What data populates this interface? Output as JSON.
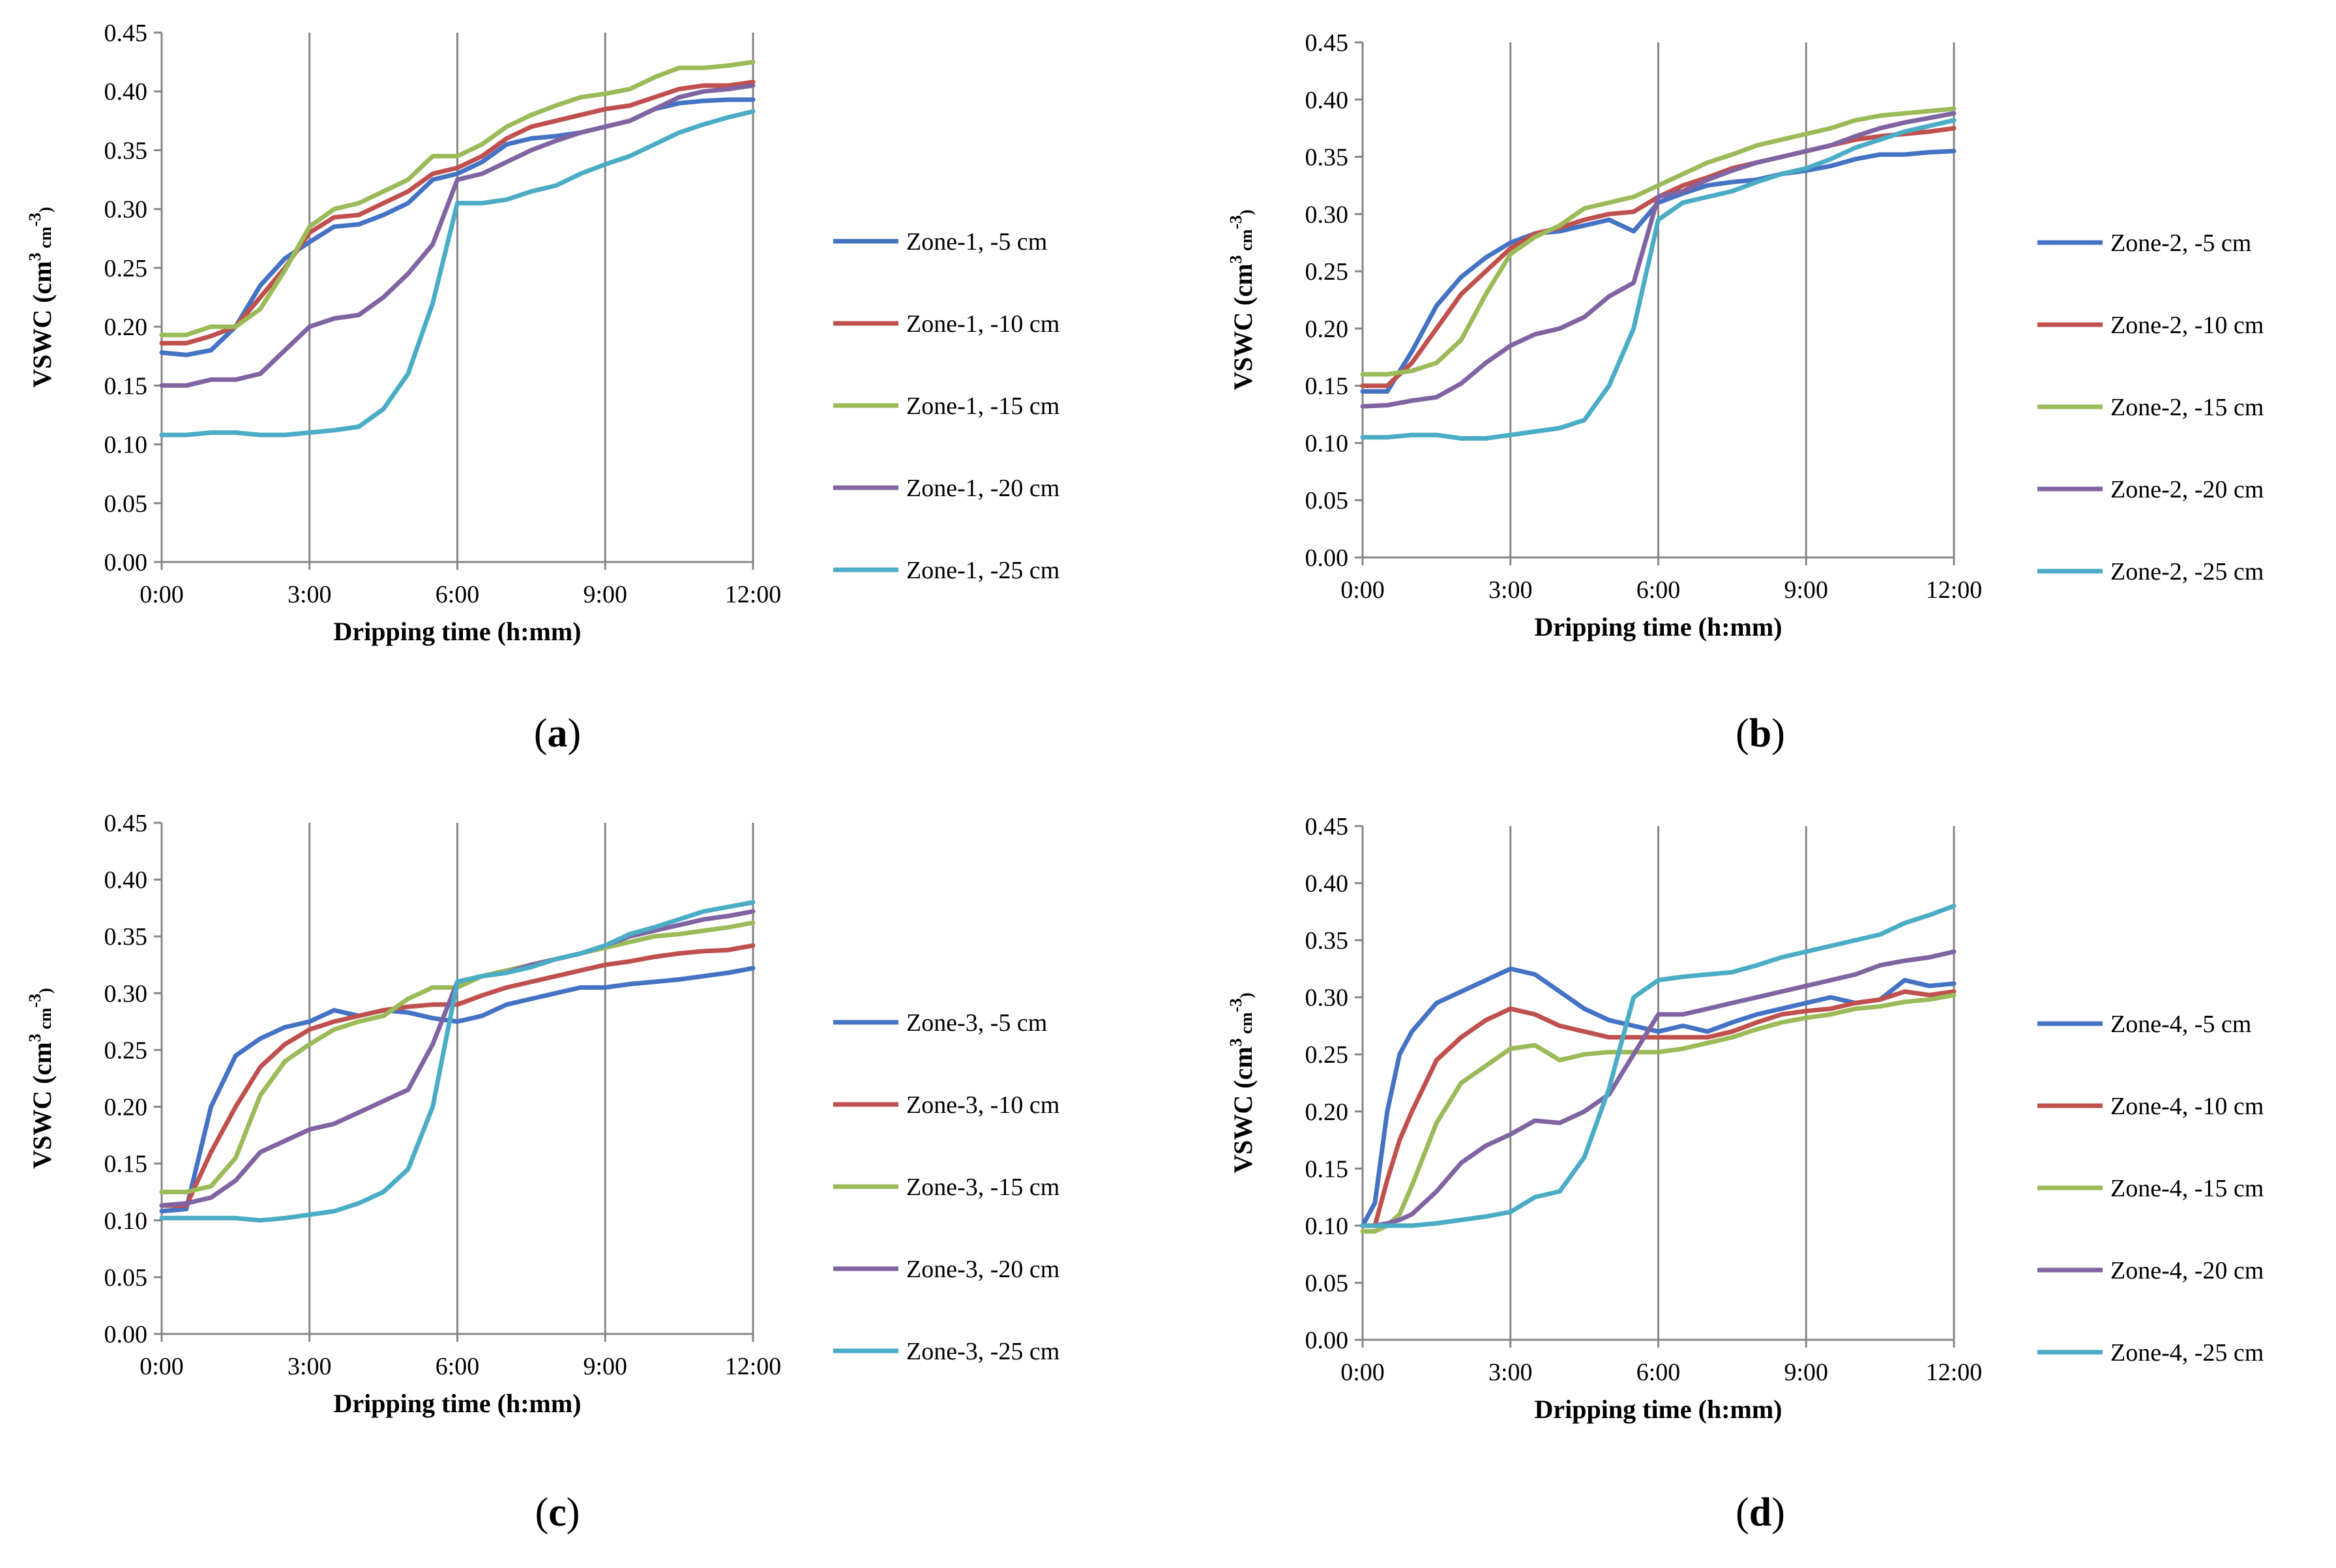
{
  "chart_data": [
    {
      "type": "line",
      "panel_label": "a",
      "xlabel": "Dripping time (h:mm)",
      "ylabel": "VSWC (cm³ cm⁻³)",
      "ylabel_parts": {
        "base": "VSWC (cm",
        "sup1": "3",
        "mid": " cm",
        "sup2": "-3",
        "end": ")"
      },
      "xlim": [
        0,
        12
      ],
      "ylim": [
        0,
        0.45
      ],
      "x_ticks": [
        0,
        3,
        6,
        9,
        12
      ],
      "x_tick_labels": [
        "0:00",
        "3:00",
        "6:00",
        "9:00",
        "12:00"
      ],
      "y_ticks": [
        0,
        0.05,
        0.1,
        0.15,
        0.2,
        0.25,
        0.3,
        0.35,
        0.4,
        0.45
      ],
      "y_tick_labels": [
        "0.00",
        "0.05",
        "0.10",
        "0.15",
        "0.20",
        "0.25",
        "0.30",
        "0.35",
        "0.40",
        "0.45"
      ],
      "grid": "vertical",
      "legend": "right",
      "x": [
        0,
        0.5,
        1,
        1.5,
        2,
        2.5,
        3,
        3.5,
        4,
        4.5,
        5,
        5.5,
        6,
        6.5,
        7,
        7.5,
        8,
        8.5,
        9,
        9.5,
        10,
        10.5,
        11,
        11.5,
        12
      ],
      "series": [
        {
          "name": "Zone-1, -5 cm",
          "color": "#4472C4",
          "values": [
            0.178,
            0.176,
            0.18,
            0.2,
            0.235,
            0.258,
            0.272,
            0.285,
            0.287,
            0.295,
            0.305,
            0.325,
            0.33,
            0.34,
            0.355,
            0.36,
            0.362,
            0.365,
            0.37,
            0.375,
            0.385,
            0.39,
            0.392,
            0.393,
            0.393
          ]
        },
        {
          "name": "Zone-1, -10 cm",
          "color": "#C0504D",
          "values": [
            0.186,
            0.186,
            0.192,
            0.2,
            0.225,
            0.25,
            0.28,
            0.293,
            0.295,
            0.305,
            0.315,
            0.33,
            0.335,
            0.345,
            0.36,
            0.37,
            0.375,
            0.38,
            0.385,
            0.388,
            0.395,
            0.402,
            0.405,
            0.405,
            0.408
          ]
        },
        {
          "name": "Zone-1, -15 cm",
          "color": "#9BBB59",
          "values": [
            0.193,
            0.193,
            0.2,
            0.2,
            0.215,
            0.248,
            0.285,
            0.3,
            0.305,
            0.315,
            0.325,
            0.345,
            0.345,
            0.355,
            0.37,
            0.38,
            0.388,
            0.395,
            0.398,
            0.402,
            0.412,
            0.42,
            0.42,
            0.422,
            0.425
          ]
        },
        {
          "name": "Zone-1, -20 cm",
          "color": "#8064A2",
          "values": [
            0.15,
            0.15,
            0.155,
            0.155,
            0.16,
            0.18,
            0.2,
            0.207,
            0.21,
            0.225,
            0.245,
            0.27,
            0.325,
            0.33,
            0.34,
            0.35,
            0.358,
            0.365,
            0.37,
            0.375,
            0.385,
            0.395,
            0.4,
            0.402,
            0.405
          ]
        },
        {
          "name": "Zone-1, -25 cm",
          "color": "#4BACC6",
          "values": [
            0.108,
            0.108,
            0.11,
            0.11,
            0.108,
            0.108,
            0.11,
            0.112,
            0.115,
            0.13,
            0.16,
            0.22,
            0.305,
            0.305,
            0.308,
            0.315,
            0.32,
            0.33,
            0.338,
            0.345,
            0.355,
            0.365,
            0.372,
            0.378,
            0.383
          ]
        }
      ]
    },
    {
      "type": "line",
      "panel_label": "b",
      "xlabel": "Dripping time (h:mm)",
      "ylabel": "VSWC (cm³ cm⁻³)",
      "ylabel_parts": {
        "base": "VSWC (cm",
        "sup1": "3",
        "mid": " cm",
        "sup2": "-3",
        "end": ")"
      },
      "xlim": [
        0,
        12
      ],
      "ylim": [
        0,
        0.45
      ],
      "x_ticks": [
        0,
        3,
        6,
        9,
        12
      ],
      "x_tick_labels": [
        "0:00",
        "3:00",
        "6:00",
        "9:00",
        "12:00"
      ],
      "y_ticks": [
        0,
        0.05,
        0.1,
        0.15,
        0.2,
        0.25,
        0.3,
        0.35,
        0.4,
        0.45
      ],
      "y_tick_labels": [
        "0.00",
        "0.05",
        "0.10",
        "0.15",
        "0.20",
        "0.25",
        "0.30",
        "0.35",
        "0.40",
        "0.45"
      ],
      "grid": "vertical",
      "legend": "right",
      "x": [
        0,
        0.5,
        1,
        1.5,
        2,
        2.5,
        3,
        3.5,
        4,
        4.5,
        5,
        5.5,
        6,
        6.5,
        7,
        7.5,
        8,
        8.5,
        9,
        9.5,
        10,
        10.5,
        11,
        11.5,
        12
      ],
      "series": [
        {
          "name": "Zone-2, -5 cm",
          "color": "#4472C4",
          "values": [
            0.145,
            0.145,
            0.18,
            0.22,
            0.245,
            0.262,
            0.275,
            0.283,
            0.285,
            0.29,
            0.295,
            0.285,
            0.31,
            0.318,
            0.325,
            0.328,
            0.33,
            0.335,
            0.338,
            0.342,
            0.348,
            0.352,
            0.352,
            0.354,
            0.355
          ]
        },
        {
          "name": "Zone-2, -10 cm",
          "color": "#C0504D",
          "values": [
            0.15,
            0.15,
            0.17,
            0.2,
            0.23,
            0.25,
            0.27,
            0.283,
            0.288,
            0.295,
            0.3,
            0.302,
            0.315,
            0.325,
            0.332,
            0.34,
            0.345,
            0.35,
            0.355,
            0.36,
            0.365,
            0.368,
            0.37,
            0.372,
            0.375
          ]
        },
        {
          "name": "Zone-2, -15 cm",
          "color": "#9BBB59",
          "values": [
            0.16,
            0.16,
            0.163,
            0.17,
            0.19,
            0.23,
            0.265,
            0.28,
            0.29,
            0.305,
            0.31,
            0.315,
            0.325,
            0.335,
            0.345,
            0.352,
            0.36,
            0.365,
            0.37,
            0.375,
            0.382,
            0.386,
            0.388,
            0.39,
            0.392
          ]
        },
        {
          "name": "Zone-2, -20 cm",
          "color": "#8064A2",
          "values": [
            0.132,
            0.133,
            0.137,
            0.14,
            0.152,
            0.17,
            0.185,
            0.195,
            0.2,
            0.21,
            0.228,
            0.24,
            0.315,
            0.32,
            0.33,
            0.338,
            0.345,
            0.35,
            0.355,
            0.36,
            0.368,
            0.375,
            0.38,
            0.384,
            0.388
          ]
        },
        {
          "name": "Zone-2, -25 cm",
          "color": "#4BACC6",
          "values": [
            0.105,
            0.105,
            0.107,
            0.107,
            0.104,
            0.104,
            0.107,
            0.11,
            0.113,
            0.12,
            0.15,
            0.2,
            0.295,
            0.31,
            0.315,
            0.32,
            0.328,
            0.335,
            0.34,
            0.348,
            0.358,
            0.365,
            0.372,
            0.377,
            0.382
          ]
        }
      ]
    },
    {
      "type": "line",
      "panel_label": "c",
      "xlabel": "Dripping time (h:mm)",
      "ylabel": "VSWC (cm³ cm⁻³)",
      "ylabel_parts": {
        "base": "VSWC (cm",
        "sup1": "3",
        "mid": " cm",
        "sup2": "-3",
        "end": ")"
      },
      "xlim": [
        0,
        12
      ],
      "ylim": [
        0,
        0.45
      ],
      "x_ticks": [
        0,
        3,
        6,
        9,
        12
      ],
      "x_tick_labels": [
        "0:00",
        "3:00",
        "6:00",
        "9:00",
        "12:00"
      ],
      "y_ticks": [
        0,
        0.05,
        0.1,
        0.15,
        0.2,
        0.25,
        0.3,
        0.35,
        0.4,
        0.45
      ],
      "y_tick_labels": [
        "0.00",
        "0.05",
        "0.10",
        "0.15",
        "0.20",
        "0.25",
        "0.30",
        "0.35",
        "0.40",
        "0.45"
      ],
      "grid": "vertical",
      "legend": "right",
      "x": [
        0,
        0.5,
        1,
        1.5,
        2,
        2.5,
        3,
        3.5,
        4,
        4.5,
        5,
        5.5,
        6,
        6.5,
        7,
        7.5,
        8,
        8.5,
        9,
        9.5,
        10,
        10.5,
        11,
        11.5,
        12
      ],
      "series": [
        {
          "name": "Zone-3, -5 cm",
          "color": "#4472C4",
          "values": [
            0.108,
            0.11,
            0.2,
            0.245,
            0.26,
            0.27,
            0.275,
            0.285,
            0.28,
            0.285,
            0.283,
            0.278,
            0.275,
            0.28,
            0.29,
            0.295,
            0.3,
            0.305,
            0.305,
            0.308,
            0.31,
            0.312,
            0.315,
            0.318,
            0.322
          ]
        },
        {
          "name": "Zone-3, -10 cm",
          "color": "#C0504D",
          "values": [
            0.113,
            0.113,
            0.16,
            0.2,
            0.235,
            0.255,
            0.268,
            0.275,
            0.28,
            0.285,
            0.288,
            0.29,
            0.29,
            0.298,
            0.305,
            0.31,
            0.315,
            0.32,
            0.325,
            0.328,
            0.332,
            0.335,
            0.337,
            0.338,
            0.342
          ]
        },
        {
          "name": "Zone-3, -15 cm",
          "color": "#9BBB59",
          "values": [
            0.125,
            0.125,
            0.13,
            0.155,
            0.21,
            0.24,
            0.255,
            0.268,
            0.275,
            0.28,
            0.295,
            0.305,
            0.305,
            0.315,
            0.32,
            0.325,
            0.33,
            0.335,
            0.34,
            0.345,
            0.35,
            0.352,
            0.355,
            0.358,
            0.362
          ]
        },
        {
          "name": "Zone-3, -20 cm",
          "color": "#8064A2",
          "values": [
            0.113,
            0.115,
            0.12,
            0.135,
            0.16,
            0.17,
            0.18,
            0.185,
            0.195,
            0.205,
            0.215,
            0.255,
            0.31,
            0.315,
            0.318,
            0.325,
            0.33,
            0.335,
            0.342,
            0.35,
            0.355,
            0.36,
            0.365,
            0.368,
            0.372
          ]
        },
        {
          "name": "Zone-3, -25 cm",
          "color": "#4BACC6",
          "values": [
            0.102,
            0.102,
            0.102,
            0.102,
            0.1,
            0.102,
            0.105,
            0.108,
            0.115,
            0.125,
            0.145,
            0.2,
            0.31,
            0.315,
            0.318,
            0.323,
            0.33,
            0.335,
            0.342,
            0.352,
            0.358,
            0.365,
            0.372,
            0.376,
            0.38
          ]
        }
      ]
    },
    {
      "type": "line",
      "panel_label": "d",
      "xlabel": "Dripping time (h:mm)",
      "ylabel": "VSWC (cm³ cm⁻³)",
      "ylabel_parts": {
        "base": "VSWC (cm",
        "sup1": "3",
        "mid": " cm",
        "sup2": "-3",
        "end": ")"
      },
      "xlim": [
        0,
        12
      ],
      "ylim": [
        0,
        0.45
      ],
      "x_ticks": [
        0,
        3,
        6,
        9,
        12
      ],
      "x_tick_labels": [
        "0:00",
        "3:00",
        "6:00",
        "9:00",
        "12:00"
      ],
      "y_ticks": [
        0,
        0.05,
        0.1,
        0.15,
        0.2,
        0.25,
        0.3,
        0.35,
        0.4,
        0.45
      ],
      "y_tick_labels": [
        "0.00",
        "0.05",
        "0.10",
        "0.15",
        "0.20",
        "0.25",
        "0.30",
        "0.35",
        "0.40",
        "0.45"
      ],
      "grid": "vertical",
      "legend": "right",
      "x": [
        0,
        0.25,
        0.5,
        0.75,
        1,
        1.5,
        2,
        2.5,
        3,
        3.5,
        4,
        4.5,
        5,
        5.5,
        6,
        6.5,
        7,
        7.5,
        8,
        8.5,
        9,
        9.5,
        10,
        10.5,
        11,
        11.5,
        12
      ],
      "series": [
        {
          "name": "Zone-4, -5 cm",
          "color": "#4472C4",
          "values": [
            0.1,
            0.12,
            0.2,
            0.25,
            0.27,
            0.295,
            0.305,
            0.315,
            0.325,
            0.32,
            0.305,
            0.29,
            0.28,
            0.275,
            0.27,
            0.275,
            0.27,
            0.278,
            0.285,
            0.29,
            0.295,
            0.3,
            0.295,
            0.298,
            0.315,
            0.31,
            0.312
          ]
        },
        {
          "name": "Zone-4, -10 cm",
          "color": "#C0504D",
          "values": [
            0.1,
            0.1,
            0.14,
            0.175,
            0.2,
            0.245,
            0.265,
            0.28,
            0.29,
            0.285,
            0.275,
            0.27,
            0.265,
            0.265,
            0.265,
            0.265,
            0.265,
            0.27,
            0.278,
            0.285,
            0.288,
            0.29,
            0.295,
            0.298,
            0.305,
            0.302,
            0.305
          ]
        },
        {
          "name": "Zone-4, -15 cm",
          "color": "#9BBB59",
          "values": [
            0.095,
            0.095,
            0.1,
            0.11,
            0.135,
            0.19,
            0.225,
            0.24,
            0.255,
            0.258,
            0.245,
            0.25,
            0.252,
            0.252,
            0.252,
            0.255,
            0.26,
            0.265,
            0.272,
            0.278,
            0.282,
            0.285,
            0.29,
            0.292,
            0.296,
            0.298,
            0.302
          ]
        },
        {
          "name": "Zone-4, -20 cm",
          "color": "#8064A2",
          "values": [
            0.1,
            0.1,
            0.102,
            0.105,
            0.11,
            0.13,
            0.155,
            0.17,
            0.18,
            0.192,
            0.19,
            0.2,
            0.215,
            0.25,
            0.285,
            0.285,
            0.29,
            0.295,
            0.3,
            0.305,
            0.31,
            0.315,
            0.32,
            0.328,
            0.332,
            0.335,
            0.34
          ]
        },
        {
          "name": "Zone-4, -25 cm",
          "color": "#4BACC6",
          "values": [
            0.1,
            0.1,
            0.1,
            0.1,
            0.1,
            0.102,
            0.105,
            0.108,
            0.112,
            0.125,
            0.13,
            0.16,
            0.22,
            0.3,
            0.315,
            0.318,
            0.32,
            0.322,
            0.328,
            0.335,
            0.34,
            0.345,
            0.35,
            0.355,
            0.365,
            0.372,
            0.38
          ]
        }
      ]
    }
  ]
}
